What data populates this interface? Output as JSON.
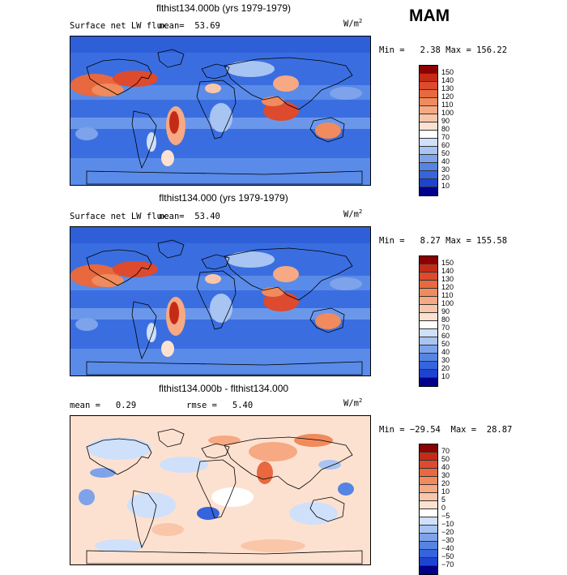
{
  "season": "MAM",
  "units_base": "W/m",
  "units_exp": "2",
  "panels": [
    {
      "title": "flthist134.000b (yrs 1979-1979)",
      "variable": "Surface net LW flux",
      "stat1": "mean=  53.69",
      "stat2": "",
      "minmax": "Min =   2.38 Max = 156.22",
      "min": 2.38,
      "max": 156.22,
      "mean": 53.69,
      "levels": [
        "150",
        "140",
        "130",
        "120",
        "110",
        "100",
        "90",
        "80",
        "70",
        "60",
        "50",
        "40",
        "30",
        "20",
        "10"
      ],
      "colors": [
        "#8b0000",
        "#c42b17",
        "#dd4a2d",
        "#e8693f",
        "#f18a5c",
        "#f6a983",
        "#fac6aa",
        "#fde1d0",
        "#ffffff",
        "#cfe0fa",
        "#a8c4f3",
        "#7ea3ea",
        "#5584e2",
        "#3564dc",
        "#1d44cf",
        "#00008b"
      ]
    },
    {
      "title": "flthist134.000 (yrs 1979-1979)",
      "variable": "Surface net LW flux",
      "stat1": "mean=  53.40",
      "stat2": "",
      "minmax": "Min =   8.27 Max = 155.58",
      "min": 8.27,
      "max": 155.58,
      "mean": 53.4,
      "levels": [
        "150",
        "140",
        "130",
        "120",
        "110",
        "100",
        "90",
        "80",
        "70",
        "60",
        "50",
        "40",
        "30",
        "20",
        "10"
      ],
      "colors": [
        "#8b0000",
        "#c42b17",
        "#dd4a2d",
        "#e8693f",
        "#f18a5c",
        "#f6a983",
        "#fac6aa",
        "#fde1d0",
        "#ffffff",
        "#cfe0fa",
        "#a8c4f3",
        "#7ea3ea",
        "#5584e2",
        "#3564dc",
        "#1d44cf",
        "#00008b"
      ]
    },
    {
      "title": "flthist134.000b - flthist134.000",
      "variable": "",
      "stat1": "mean =   0.29",
      "stat2": "rmse =   5.40",
      "minmax": "Min = −29.54  Max =  28.87",
      "min": -29.54,
      "max": 28.87,
      "mean": 0.29,
      "rmse": 5.4,
      "levels": [
        "70",
        "50",
        "40",
        "30",
        "20",
        "10",
        "5",
        "0",
        "−5",
        "−10",
        "−20",
        "−30",
        "−40",
        "−50",
        "−70"
      ],
      "colors": [
        "#8b0000",
        "#c42b17",
        "#dd4a2d",
        "#e8693f",
        "#f18a5c",
        "#f6a983",
        "#fac6aa",
        "#fde1d0",
        "#ffffff",
        "#cfe0fa",
        "#a8c4f3",
        "#7ea3ea",
        "#5584e2",
        "#3564dc",
        "#1d44cf",
        "#00008b"
      ]
    }
  ],
  "chart_data": [
    {
      "type": "heatmap",
      "title": "flthist134.000b (yrs 1979-1979)",
      "variable": "Surface net LW flux",
      "units": "W/m2",
      "mean": 53.69,
      "min": 2.38,
      "max": 156.22,
      "levels": [
        10,
        20,
        30,
        40,
        50,
        60,
        70,
        80,
        90,
        100,
        110,
        120,
        130,
        140,
        150
      ]
    },
    {
      "type": "heatmap",
      "title": "flthist134.000 (yrs 1979-1979)",
      "variable": "Surface net LW flux",
      "units": "W/m2",
      "mean": 53.4,
      "min": 8.27,
      "max": 155.58,
      "levels": [
        10,
        20,
        30,
        40,
        50,
        60,
        70,
        80,
        90,
        100,
        110,
        120,
        130,
        140,
        150
      ]
    },
    {
      "type": "heatmap",
      "title": "flthist134.000b - flthist134.000",
      "units": "W/m2",
      "mean": 0.29,
      "rmse": 5.4,
      "min": -29.54,
      "max": 28.87,
      "levels": [
        -70,
        -50,
        -40,
        -30,
        -20,
        -10,
        -5,
        0,
        5,
        10,
        20,
        30,
        40,
        50,
        70
      ]
    }
  ]
}
